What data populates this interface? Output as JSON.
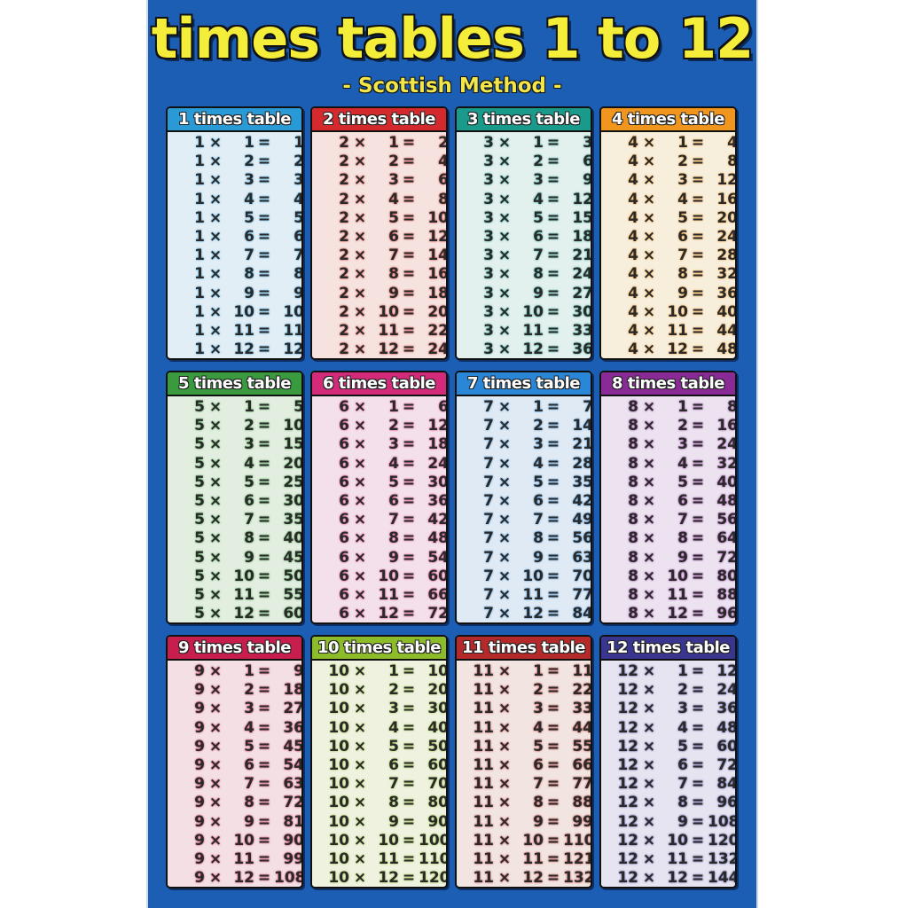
{
  "title": "times tables 1 to 12",
  "subtitle": "- Scottish Method -",
  "symbols": {
    "times": "×",
    "equals": "="
  },
  "multipliers": [
    1,
    2,
    3,
    4,
    5,
    6,
    7,
    8,
    9,
    10,
    11,
    12
  ],
  "tables": [
    {
      "n": 1,
      "label": "1 times table",
      "color": "#2a9ad6",
      "tint": "#e2eef6",
      "products": [
        1,
        2,
        3,
        4,
        5,
        6,
        7,
        8,
        9,
        10,
        11,
        12
      ]
    },
    {
      "n": 2,
      "label": "2 times table",
      "color": "#d42a2e",
      "tint": "#f6e2de",
      "products": [
        2,
        4,
        6,
        8,
        10,
        12,
        14,
        16,
        18,
        20,
        22,
        24
      ]
    },
    {
      "n": 3,
      "label": "3 times table",
      "color": "#1a9a8a",
      "tint": "#e2f0ee",
      "products": [
        3,
        6,
        9,
        12,
        15,
        18,
        21,
        24,
        27,
        30,
        33,
        36
      ]
    },
    {
      "n": 4,
      "label": "4 times table",
      "color": "#f0961e",
      "tint": "#f8eedc",
      "products": [
        4,
        8,
        12,
        16,
        20,
        24,
        28,
        32,
        36,
        40,
        44,
        48
      ]
    },
    {
      "n": 5,
      "label": "5 times table",
      "color": "#3a9a3e",
      "tint": "#e2eee0",
      "products": [
        5,
        10,
        15,
        20,
        25,
        30,
        35,
        40,
        45,
        50,
        55,
        60
      ]
    },
    {
      "n": 6,
      "label": "6 times table",
      "color": "#d42a7a",
      "tint": "#f4e0ea",
      "products": [
        6,
        12,
        18,
        24,
        30,
        36,
        42,
        48,
        54,
        60,
        66,
        72
      ]
    },
    {
      "n": 7,
      "label": "7 times table",
      "color": "#2a86d6",
      "tint": "#e0eaf4",
      "products": [
        7,
        14,
        21,
        28,
        35,
        42,
        49,
        56,
        63,
        70,
        77,
        84
      ]
    },
    {
      "n": 8,
      "label": "8 times table",
      "color": "#8a2a96",
      "tint": "#ece2f0",
      "products": [
        8,
        16,
        24,
        32,
        40,
        48,
        56,
        64,
        72,
        80,
        88,
        96
      ]
    },
    {
      "n": 9,
      "label": "9 times table",
      "color": "#c81e4e",
      "tint": "#f4e0e4",
      "products": [
        9,
        18,
        27,
        36,
        45,
        54,
        63,
        72,
        81,
        90,
        99,
        108
      ]
    },
    {
      "n": 10,
      "label": "10 times table",
      "color": "#8cbc2a",
      "tint": "#eef2de",
      "products": [
        10,
        20,
        30,
        40,
        50,
        60,
        70,
        80,
        90,
        100,
        110,
        120
      ]
    },
    {
      "n": 11,
      "label": "11 times table",
      "color": "#b42a2a",
      "tint": "#f2e4e0",
      "products": [
        11,
        22,
        33,
        44,
        55,
        66,
        77,
        88,
        99,
        110,
        121,
        132
      ]
    },
    {
      "n": 12,
      "label": "12 times table",
      "color": "#3a3690",
      "tint": "#e6e4f0",
      "products": [
        12,
        24,
        36,
        48,
        60,
        72,
        84,
        96,
        108,
        120,
        132,
        144
      ]
    }
  ]
}
